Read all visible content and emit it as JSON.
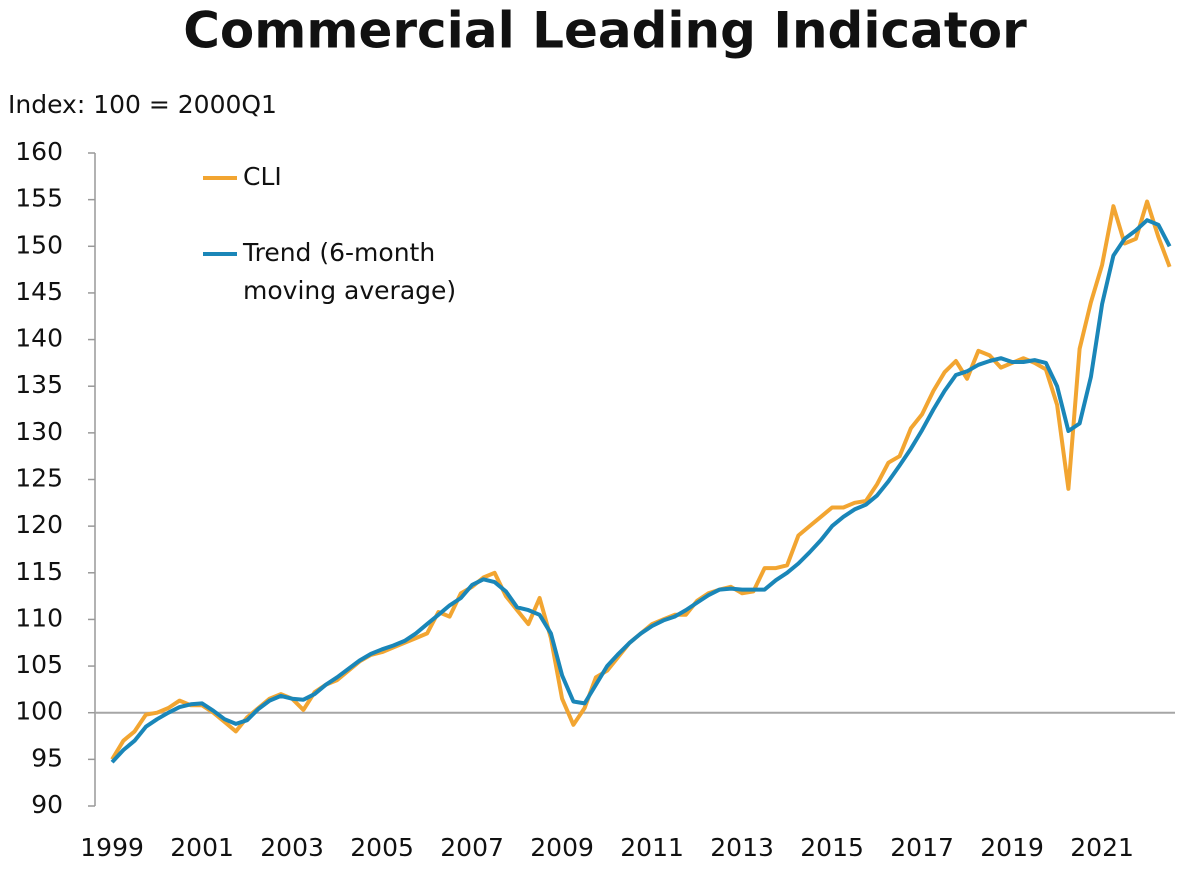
{
  "chart_data": {
    "type": "line",
    "title": "Commercial Leading Indicator",
    "y_label": "Index: 100 = 2000Q1",
    "x": [
      1999,
      1999.25,
      1999.5,
      1999.75,
      2000,
      2000.25,
      2000.5,
      2000.75,
      2001,
      2001.25,
      2001.5,
      2001.75,
      2002,
      2002.25,
      2002.5,
      2002.75,
      2003,
      2003.25,
      2003.5,
      2003.75,
      2004,
      2004.25,
      2004.5,
      2004.75,
      2005,
      2005.25,
      2005.5,
      2005.75,
      2006,
      2006.25,
      2006.5,
      2006.75,
      2007,
      2007.25,
      2007.5,
      2007.75,
      2008,
      2008.25,
      2008.5,
      2008.75,
      2009,
      2009.25,
      2009.5,
      2009.75,
      2010,
      2010.25,
      2010.5,
      2010.75,
      2011,
      2011.25,
      2011.5,
      2011.75,
      2012,
      2012.25,
      2012.5,
      2012.75,
      2013,
      2013.25,
      2013.5,
      2013.75,
      2014,
      2014.25,
      2014.5,
      2014.75,
      2015,
      2015.25,
      2015.5,
      2015.75,
      2016,
      2016.25,
      2016.5,
      2016.75,
      2017,
      2017.25,
      2017.5,
      2017.75,
      2018,
      2018.25,
      2018.5,
      2018.75,
      2019,
      2019.25,
      2019.5,
      2019.75,
      2020,
      2020.25,
      2020.5,
      2020.75,
      2021,
      2021.25,
      2021.5,
      2021.75,
      2022,
      2022.25,
      2022.5
    ],
    "series": [
      {
        "name": "CLI",
        "color": "#f2a531",
        "values": [
          95,
          97,
          98,
          99.8,
          100,
          100.5,
          101.3,
          100.8,
          100.8,
          100,
          99,
          98,
          99.5,
          100.5,
          101.5,
          102,
          101.5,
          100.3,
          102.2,
          103,
          103.5,
          104.5,
          105.5,
          106.2,
          106.5,
          107,
          107.5,
          108,
          108.5,
          110.8,
          110.3,
          112.8,
          113.5,
          114.5,
          115,
          112.5,
          111,
          109.5,
          112.3,
          108,
          101.5,
          98.7,
          100.5,
          103.8,
          104.5,
          106,
          107.5,
          108.5,
          109.5,
          110,
          110.5,
          110.5,
          112,
          112.8,
          113.2,
          113.5,
          112.8,
          113,
          115.5,
          115.5,
          115.8,
          119,
          120,
          121,
          122,
          122,
          122.5,
          122.7,
          124.5,
          126.8,
          127.5,
          130.5,
          132,
          134.5,
          136.5,
          137.7,
          135.8,
          138.8,
          138.3,
          137,
          137.5,
          138,
          137.5,
          136.8,
          133,
          124,
          139,
          144,
          148,
          154.3,
          150.3,
          150.8,
          154.8,
          151,
          147.8
        ]
      },
      {
        "name": "Trend (6-month moving average)",
        "color": "#1a86b8",
        "values": [
          94.7,
          96,
          97,
          98.5,
          99.3,
          100,
          100.6,
          100.9,
          101,
          100.2,
          99.3,
          98.8,
          99.2,
          100.4,
          101.3,
          101.8,
          101.5,
          101.4,
          102,
          103,
          103.8,
          104.7,
          105.6,
          106.3,
          106.8,
          107.2,
          107.7,
          108.5,
          109.5,
          110.5,
          111.5,
          112.3,
          113.7,
          114.3,
          114,
          113,
          111.3,
          111,
          110.5,
          108.5,
          104,
          101.2,
          101,
          103,
          105,
          106.3,
          107.5,
          108.5,
          109.3,
          109.9,
          110.3,
          111,
          111.8,
          112.6,
          113.2,
          113.3,
          113.2,
          113.2,
          113.2,
          114.2,
          115,
          116,
          117.2,
          118.5,
          120,
          121,
          121.8,
          122.3,
          123.3,
          124.8,
          126.5,
          128.3,
          130.3,
          132.5,
          134.5,
          136.2,
          136.6,
          137.3,
          137.7,
          138,
          137.6,
          137.6,
          137.8,
          137.5,
          135,
          130.2,
          131,
          136,
          143.8,
          149,
          150.8,
          151.7,
          152.8,
          152.3,
          150
        ]
      }
    ],
    "reference_line": 100,
    "xlim": [
      1998.62,
      2022.62
    ],
    "xticks": [
      1999,
      2001,
      2003,
      2005,
      2007,
      2009,
      2011,
      2013,
      2015,
      2017,
      2019,
      2021
    ],
    "ylim": [
      90,
      160
    ],
    "yticks": [
      90,
      95,
      100,
      105,
      110,
      115,
      120,
      125,
      130,
      135,
      140,
      145,
      150,
      155,
      160
    ]
  }
}
